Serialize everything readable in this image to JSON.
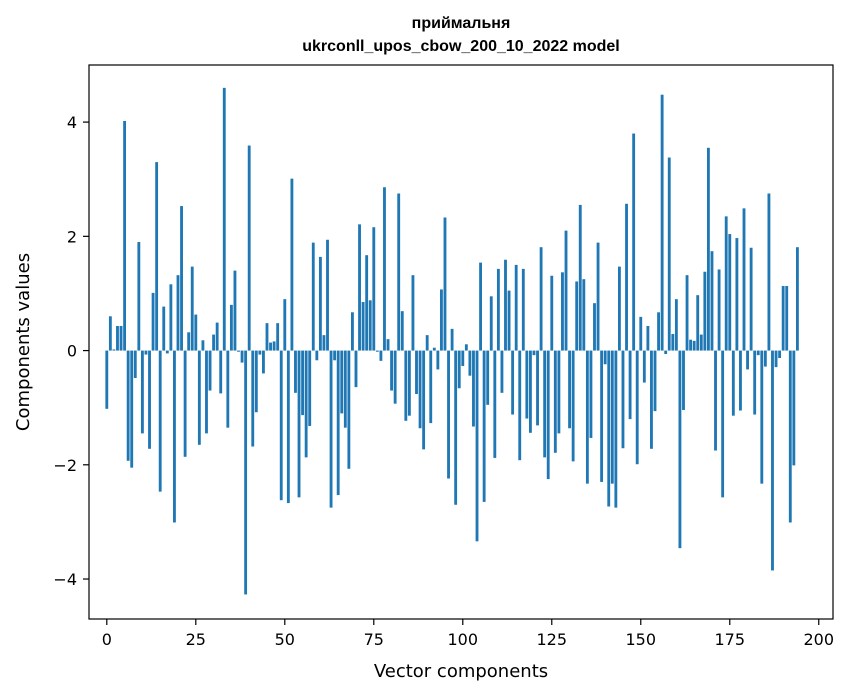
{
  "chart_data": {
    "type": "bar",
    "title_line1": "приймальня",
    "title_line2": "ukrconll_upos_cbow_200_10_2022 model",
    "xlabel": "Vector components",
    "ylabel": "Components values",
    "xlim": [
      -5,
      204
    ],
    "ylim": [
      -4.7,
      5.0
    ],
    "xticks": [
      0,
      25,
      50,
      75,
      100,
      125,
      150,
      175,
      200
    ],
    "xtick_labels": [
      "0",
      "25",
      "50",
      "75",
      "100",
      "125",
      "150",
      "175",
      "200"
    ],
    "yticks": [
      -4,
      -2,
      0,
      2,
      4
    ],
    "ytick_labels": [
      "−4",
      "−2",
      "0",
      "2",
      "4"
    ],
    "grid": false,
    "bar_color": "#1f77b4",
    "values": [
      -1.02,
      0.6,
      0.02,
      0.43,
      0.43,
      4.02,
      -1.93,
      -2.05,
      -0.48,
      1.9,
      -1.45,
      -0.07,
      -1.72,
      1.01,
      3.3,
      -2.47,
      0.77,
      -0.05,
      1.16,
      -3.01,
      1.32,
      2.53,
      -1.86,
      0.32,
      1.47,
      0.63,
      -1.65,
      0.18,
      -1.45,
      -0.7,
      0.28,
      0.49,
      -0.75,
      4.6,
      -1.35,
      0.8,
      1.4,
      -0.02,
      -0.21,
      -4.27,
      3.59,
      -1.68,
      -1.08,
      -0.07,
      -0.4,
      0.48,
      0.14,
      0.16,
      0.48,
      -2.62,
      0.9,
      -2.67,
      3.01,
      -0.74,
      -2.57,
      -1.13,
      -1.87,
      -1.32,
      1.89,
      -0.17,
      1.64,
      0.27,
      1.94,
      -2.75,
      -0.17,
      -2.53,
      -1.1,
      -1.35,
      -2.07,
      0.67,
      -0.64,
      2.21,
      0.85,
      1.67,
      0.88,
      2.16,
      -0.02,
      -0.18,
      2.86,
      0.2,
      -0.7,
      -0.93,
      2.75,
      0.69,
      -1.23,
      -1.14,
      1.32,
      -0.76,
      -1.36,
      -1.73,
      0.27,
      -1.27,
      0.05,
      -0.33,
      1.07,
      2.33,
      -2.24,
      0.38,
      -2.7,
      -0.66,
      -0.27,
      0.11,
      -0.44,
      -1.33,
      -3.34,
      1.54,
      -2.65,
      -0.95,
      0.95,
      -1.88,
      1.43,
      -0.74,
      1.59,
      1.05,
      -1.12,
      1.5,
      -1.92,
      1.43,
      -1.19,
      -1.44,
      -0.08,
      -1.31,
      1.81,
      -1.87,
      -2.25,
      1.31,
      -1.79,
      -1.45,
      1.37,
      2.1,
      -1.36,
      -1.94,
      1.21,
      2.55,
      1.25,
      -2.33,
      -1.53,
      0.83,
      1.89,
      -2.3,
      -0.24,
      -2.73,
      -2.33,
      -2.75,
      1.47,
      -1.71,
      2.57,
      -1.2,
      3.8,
      -1.99,
      0.59,
      -0.56,
      0.43,
      -1.72,
      -1.06,
      0.67,
      4.48,
      -0.06,
      3.38,
      0.29,
      0.9,
      -3.46,
      -1.04,
      1.32,
      0.19,
      0.17,
      0.97,
      0.28,
      1.38,
      3.55,
      1.74,
      -1.75,
      1.42,
      -2.57,
      2.35,
      2.04,
      -1.14,
      1.97,
      -1.05,
      2.49,
      -0.33,
      1.8,
      -1.12,
      -0.08,
      -2.33,
      -0.28,
      2.75,
      -3.85,
      -0.29,
      -0.13,
      1.13,
      1.13,
      -3.01,
      -2.01,
      1.81
    ]
  }
}
